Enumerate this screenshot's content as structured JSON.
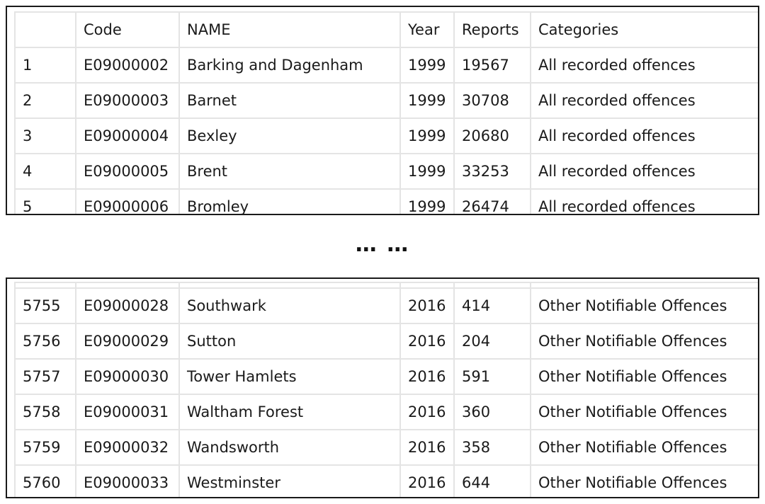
{
  "table_head": {
    "columns": [
      "",
      "Code",
      "NAME",
      "Year",
      "Reports",
      "Categories"
    ]
  },
  "top_rows": [
    {
      "idx": "1",
      "code": "E09000002",
      "name": "Barking and Dagenham",
      "year": "1999",
      "reports": "19567",
      "category": "All recorded offences"
    },
    {
      "idx": "2",
      "code": "E09000003",
      "name": "Barnet",
      "year": "1999",
      "reports": "30708",
      "category": "All recorded offences"
    },
    {
      "idx": "3",
      "code": "E09000004",
      "name": "Bexley",
      "year": "1999",
      "reports": "20680",
      "category": "All recorded offences"
    },
    {
      "idx": "4",
      "code": "E09000005",
      "name": "Brent",
      "year": "1999",
      "reports": "33253",
      "category": "All recorded offences"
    },
    {
      "idx": "5",
      "code": "E09000006",
      "name": "Bromley",
      "year": "1999",
      "reports": "26474",
      "category": "All recorded offences"
    }
  ],
  "separator": "… …",
  "bottom_rows": [
    {
      "idx": "5755",
      "code": "E09000028",
      "name": "Southwark",
      "year": "2016",
      "reports": "414",
      "category": "Other Notifiable Offences"
    },
    {
      "idx": "5756",
      "code": "E09000029",
      "name": "Sutton",
      "year": "2016",
      "reports": "204",
      "category": "Other Notifiable Offences"
    },
    {
      "idx": "5757",
      "code": "E09000030",
      "name": "Tower Hamlets",
      "year": "2016",
      "reports": "591",
      "category": "Other Notifiable Offences"
    },
    {
      "idx": "5758",
      "code": "E09000031",
      "name": "Waltham Forest",
      "year": "2016",
      "reports": "360",
      "category": "Other Notifiable Offences"
    },
    {
      "idx": "5759",
      "code": "E09000032",
      "name": "Wandsworth",
      "year": "2016",
      "reports": "358",
      "category": "Other Notifiable Offences"
    },
    {
      "idx": "5760",
      "code": "E09000033",
      "name": "Westminster",
      "year": "2016",
      "reports": "644",
      "category": "Other Notifiable Offences"
    }
  ],
  "colors": {
    "panel_border": "#1a1a1a",
    "grid_line": "#e4e4e4",
    "text": "#1a1a1a"
  }
}
